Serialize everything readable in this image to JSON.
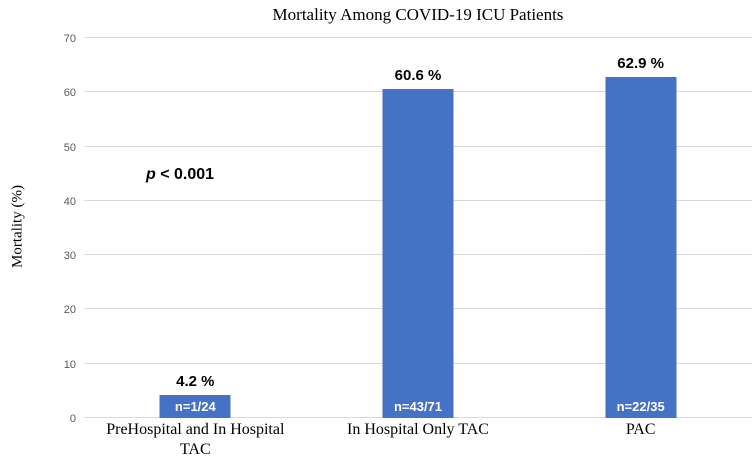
{
  "chart_data": {
    "type": "bar",
    "title": "Mortality Among COVID-19 ICU Patients",
    "ylabel": "Mortality (%)",
    "xlabel": "",
    "categories": [
      "PreHospital and In Hospital TAC",
      "In Hospital Only TAC",
      "PAC"
    ],
    "values": [
      4.2,
      60.6,
      62.9
    ],
    "value_labels": [
      "4.2 %",
      "60.6 %",
      "62.9 %"
    ],
    "bar_annotations": [
      "n=1/24",
      "n=43/71",
      "n=22/35"
    ],
    "annotation": {
      "p_symbol": "p",
      "rest": " < 0.001"
    },
    "ylim": [
      0,
      70
    ],
    "yticks": [
      0,
      10,
      20,
      30,
      40,
      50,
      60,
      70
    ],
    "grid": true,
    "legend": "none",
    "colors": {
      "bar": "#4472C4",
      "gridline": "#d9d9d9",
      "tick_label": "#595959",
      "text": "#000000",
      "bar_inner_label": "#ffffff",
      "background": "#ffffff"
    }
  }
}
